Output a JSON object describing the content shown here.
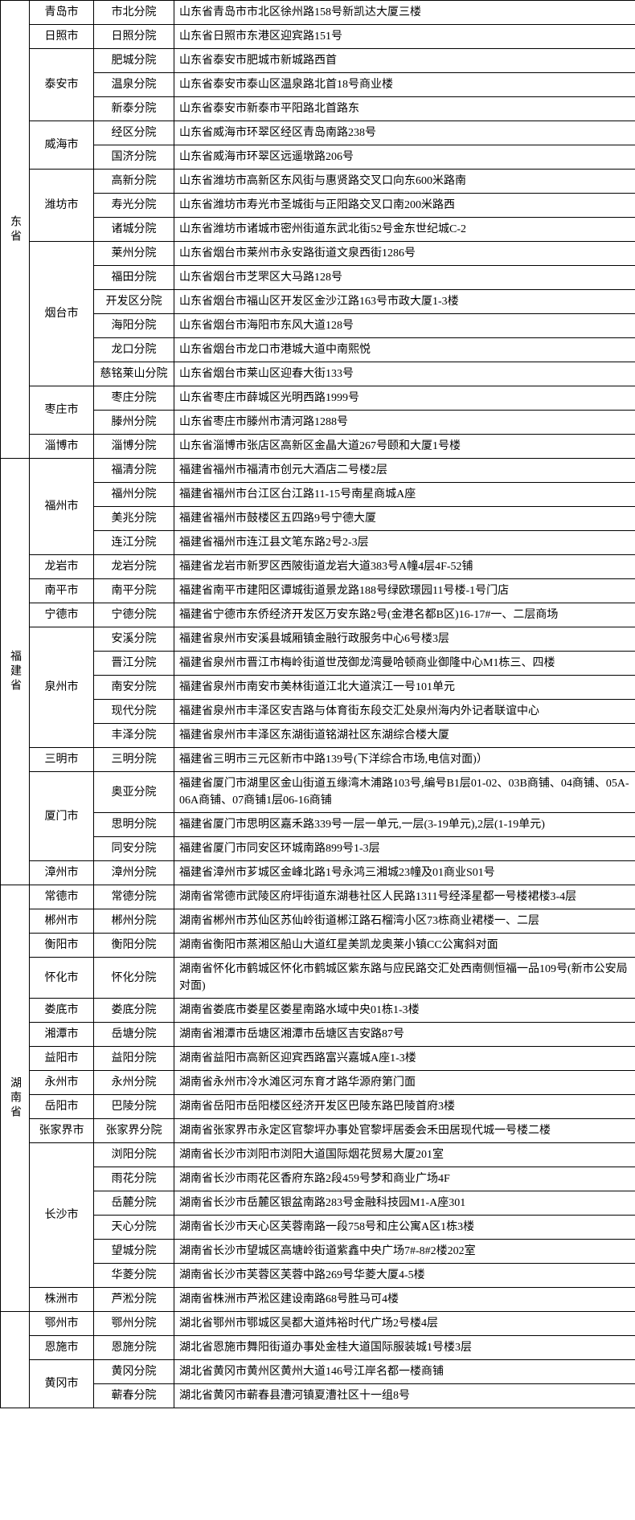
{
  "provinces": [
    {
      "name": "东省",
      "groups": [
        {
          "city": "青岛市",
          "branches": [
            {
              "branch": "市北分院",
              "address": "山东省青岛市市北区徐州路158号新凯达大厦三楼"
            }
          ]
        },
        {
          "city": "日照市",
          "branches": [
            {
              "branch": "日照分院",
              "address": "山东省日照市东港区迎宾路151号"
            }
          ]
        },
        {
          "city": "泰安市",
          "branches": [
            {
              "branch": "肥城分院",
              "address": "山东省泰安市肥城市新城路西首"
            },
            {
              "branch": "温泉分院",
              "address": "山东省泰安市泰山区温泉路北首18号商业楼"
            },
            {
              "branch": "新泰分院",
              "address": "山东省泰安市新泰市平阳路北首路东"
            }
          ]
        },
        {
          "city": "威海市",
          "branches": [
            {
              "branch": "经区分院",
              "address": "山东省威海市环翠区经区青岛南路238号"
            },
            {
              "branch": "国济分院",
              "address": "山东省威海市环翠区远遥墩路206号"
            }
          ]
        },
        {
          "city": "潍坊市",
          "branches": [
            {
              "branch": "高新分院",
              "address": "山东省潍坊市高新区东风街与惠贤路交叉口向东600米路南"
            },
            {
              "branch": "寿光分院",
              "address": "山东省潍坊市寿光市圣城街与正阳路交叉口南200米路西"
            },
            {
              "branch": "诸城分院",
              "address": "山东省潍坊市诸城市密州街道东武北街52号金东世纪城C-2"
            }
          ]
        },
        {
          "city": "烟台市",
          "branches": [
            {
              "branch": "莱州分院",
              "address": "山东省烟台市莱州市永安路街道文泉西街1286号"
            },
            {
              "branch": "福田分院",
              "address": "山东省烟台市芝罘区大马路128号"
            },
            {
              "branch": "开发区分院",
              "address": "山东省烟台市福山区开发区金沙江路163号市政大厦1-3楼"
            },
            {
              "branch": "海阳分院",
              "address": "山东省烟台市海阳市东风大道128号"
            },
            {
              "branch": "龙口分院",
              "address": "山东省烟台市龙口市港城大道中南熙悦"
            },
            {
              "branch": "慈铭莱山分院",
              "address": "山东省烟台市莱山区迎春大街133号"
            }
          ]
        },
        {
          "city": "枣庄市",
          "branches": [
            {
              "branch": "枣庄分院",
              "address": "山东省枣庄市薛城区光明西路1999号"
            },
            {
              "branch": "滕州分院",
              "address": "山东省枣庄市滕州市清河路1288号"
            }
          ]
        },
        {
          "city": "淄博市",
          "branches": [
            {
              "branch": "淄博分院",
              "address": "山东省淄博市张店区高新区金晶大道267号颐和大厦1号楼"
            }
          ]
        }
      ]
    },
    {
      "name": "福建省",
      "groups": [
        {
          "city": "福州市",
          "branches": [
            {
              "branch": "福清分院",
              "address": "福建省福州市福清市创元大酒店二号楼2层"
            },
            {
              "branch": "福州分院",
              "address": "福建省福州市台江区台江路11-15号南星商城A座"
            },
            {
              "branch": "美兆分院",
              "address": "福建省福州市鼓楼区五四路9号宁德大厦"
            },
            {
              "branch": "连江分院",
              "address": "福建省福州市连江县文笔东路2号2-3层"
            }
          ]
        },
        {
          "city": "龙岩市",
          "branches": [
            {
              "branch": "龙岩分院",
              "address": "福建省龙岩市新罗区西陂街道龙岩大道383号A幢4层4F-52铺"
            }
          ]
        },
        {
          "city": "南平市",
          "branches": [
            {
              "branch": "南平分院",
              "address": "福建省南平市建阳区谭城街道景龙路188号绿欧璟园11号楼-1号门店"
            }
          ]
        },
        {
          "city": "宁德市",
          "branches": [
            {
              "branch": "宁德分院",
              "address": "福建省宁德市东侨经济开发区万安东路2号(金港名都B区)16-17#一、二层商场"
            }
          ]
        },
        {
          "city": "泉州市",
          "branches": [
            {
              "branch": "安溪分院",
              "address": "福建省泉州市安溪县城厢镇金融行政服务中心6号楼3层"
            },
            {
              "branch": "晋江分院",
              "address": "福建省泉州市晋江市梅岭街道世茂御龙湾曼哈顿商业御隆中心M1栋三、四楼"
            },
            {
              "branch": "南安分院",
              "address": "福建省泉州市南安市美林街道江北大道滨江一号101单元"
            },
            {
              "branch": "现代分院",
              "address": "福建省泉州市丰泽区安吉路与体育街东段交汇处泉州海内外记者联谊中心"
            },
            {
              "branch": "丰泽分院",
              "address": "福建省泉州市丰泽区东湖街道铭湖社区东湖综合楼大厦"
            }
          ]
        },
        {
          "city": "三明市",
          "branches": [
            {
              "branch": "三明分院",
              "address": "福建省三明市三元区新市中路139号(下洋综合市场,电信对面)）"
            }
          ]
        },
        {
          "city": "厦门市",
          "branches": [
            {
              "branch": "奥亚分院",
              "address": "福建省厦门市湖里区金山街道五缘湾木浦路103号,编号B1层01-02、03B商铺、04商铺、05A-06A商铺、07商铺1层06-16商铺"
            },
            {
              "branch": "思明分院",
              "address": "福建省厦门市思明区嘉禾路339号一层一单元,一层(3-19单元),2层(1-19单元)"
            },
            {
              "branch": "同安分院",
              "address": "福建省厦门市同安区环城南路899号1-3层"
            }
          ]
        },
        {
          "city": "漳州市",
          "branches": [
            {
              "branch": "漳州分院",
              "address": "福建省漳州市芗城区金峰北路1号永鸿三湘城23幢及01商业S01号"
            }
          ]
        }
      ]
    },
    {
      "name": "湖南省",
      "groups": [
        {
          "city": "常德市",
          "branches": [
            {
              "branch": "常德分院",
              "address": "湖南省常德市武陵区府坪街道东湖巷社区人民路1311号经泽星都一号楼裙楼3-4层"
            }
          ]
        },
        {
          "city": "郴州市",
          "branches": [
            {
              "branch": "郴州分院",
              "address": "湖南省郴州市苏仙区苏仙岭街道郴江路石榴湾小区73栋商业裙楼一、二层"
            }
          ]
        },
        {
          "city": "衡阳市",
          "branches": [
            {
              "branch": "衡阳分院",
              "address": "湖南省衡阳市蒸湘区船山大道红星美凯龙奥莱小镇CC公寓斜对面"
            }
          ]
        },
        {
          "city": "怀化市",
          "branches": [
            {
              "branch": "怀化分院",
              "address": "湖南省怀化市鹤城区怀化市鹤城区紫东路与应民路交汇处西南侧恒福一品109号(新市公安局对面)"
            }
          ]
        },
        {
          "city": "娄底市",
          "branches": [
            {
              "branch": "娄底分院",
              "address": "湖南省娄底市娄星区娄星南路水域中央01栋1-3楼"
            }
          ]
        },
        {
          "city": "湘潭市",
          "branches": [
            {
              "branch": "岳塘分院",
              "address": "湖南省湘潭市岳塘区湘潭市岳塘区吉安路87号"
            }
          ]
        },
        {
          "city": "益阳市",
          "branches": [
            {
              "branch": "益阳分院",
              "address": "湖南省益阳市高新区迎宾西路富兴嘉城A座1-3楼"
            }
          ]
        },
        {
          "city": "永州市",
          "branches": [
            {
              "branch": "永州分院",
              "address": "湖南省永州市冷水滩区河东育才路华源府第门面"
            }
          ]
        },
        {
          "city": "岳阳市",
          "branches": [
            {
              "branch": "巴陵分院",
              "address": "湖南省岳阳市岳阳楼区经济开发区巴陵东路巴陵首府3楼"
            }
          ]
        },
        {
          "city": "张家界市",
          "branches": [
            {
              "branch": "张家界分院",
              "address": "湖南省张家界市永定区官黎坪办事处官黎坪居委会禾田居现代城一号楼二楼"
            }
          ]
        },
        {
          "city": "长沙市",
          "branches": [
            {
              "branch": "浏阳分院",
              "address": "湖南省长沙市浏阳市浏阳大道国际烟花贸易大厦201室"
            },
            {
              "branch": "雨花分院",
              "address": "湖南省长沙市雨花区香府东路2段459号梦和商业广场4F"
            },
            {
              "branch": "岳麓分院",
              "address": "湖南省长沙市岳麓区银盆南路283号金融科技园M1-A座301"
            },
            {
              "branch": "天心分院",
              "address": "湖南省长沙市天心区芙蓉南路一段758号和庄公寓A区1栋3楼"
            },
            {
              "branch": "望城分院",
              "address": "湖南省长沙市望城区高塘岭街道紫鑫中央广场7#-8#2楼202室"
            },
            {
              "branch": "华菱分院",
              "address": "湖南省长沙市芙蓉区芙蓉中路269号华菱大厦4-5楼"
            }
          ]
        },
        {
          "city": "株洲市",
          "branches": [
            {
              "branch": "芦淞分院",
              "address": "湖南省株洲市芦淞区建设南路68号胜马可4楼"
            }
          ]
        }
      ]
    },
    {
      "name": "",
      "groups": [
        {
          "city": "鄂州市",
          "branches": [
            {
              "branch": "鄂州分院",
              "address": "湖北省鄂州市鄂城区吴都大道炜裕时代广场2号楼4层"
            }
          ]
        },
        {
          "city": "恩施市",
          "branches": [
            {
              "branch": "恩施分院",
              "address": "湖北省恩施市舞阳街道办事处金桂大道国际服装城1号楼3层"
            }
          ]
        },
        {
          "city": "黄冈市",
          "branches": [
            {
              "branch": "黄冈分院",
              "address": "湖北省黄冈市黄州区黄州大道146号江岸名都一楼商铺"
            },
            {
              "branch": "蕲春分院",
              "address": "湖北省黄冈市蕲春县漕河镇夏漕社区十一组8号"
            }
          ]
        }
      ]
    }
  ]
}
